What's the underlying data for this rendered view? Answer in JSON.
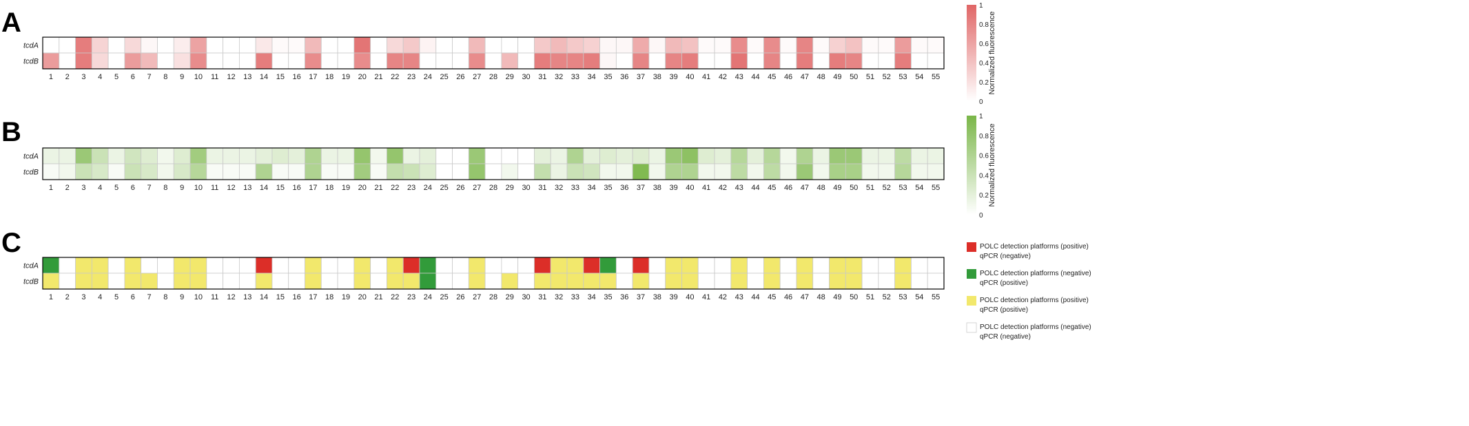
{
  "chart_data": [
    {
      "type": "heatmap",
      "panel_label": "A",
      "rows": [
        "tcdA",
        "tcdB"
      ],
      "columns": [
        "1",
        "2",
        "3",
        "4",
        "5",
        "6",
        "7",
        "8",
        "9",
        "10",
        "11",
        "12",
        "13",
        "14",
        "15",
        "16",
        "17",
        "18",
        "19",
        "20",
        "21",
        "22",
        "23",
        "24",
        "25",
        "26",
        "27",
        "28",
        "29",
        "30",
        "31",
        "32",
        "33",
        "34",
        "35",
        "36",
        "37",
        "38",
        "39",
        "40",
        "41",
        "42",
        "43",
        "44",
        "45",
        "46",
        "47",
        "48",
        "49",
        "50",
        "51",
        "52",
        "53",
        "54",
        "55"
      ],
      "values": [
        [
          0,
          0,
          0.85,
          0.28,
          0,
          0.25,
          0.05,
          0,
          0.12,
          0.6,
          0,
          0,
          0,
          0.15,
          0.03,
          0.03,
          0.45,
          0,
          0,
          0.9,
          0,
          0.25,
          0.35,
          0.08,
          0,
          0,
          0.45,
          0,
          0,
          0,
          0.35,
          0.45,
          0.35,
          0.3,
          0.05,
          0.05,
          0.55,
          0.05,
          0.45,
          0.4,
          0.03,
          0.03,
          0.75,
          0.03,
          0.75,
          0.03,
          0.8,
          0.03,
          0.3,
          0.4,
          0.03,
          0.03,
          0.65,
          0.03,
          0.03
        ],
        [
          0.65,
          0,
          0.85,
          0.25,
          0,
          0.65,
          0.45,
          0,
          0.2,
          0.75,
          0,
          0,
          0,
          0.85,
          0,
          0,
          0.75,
          0,
          0,
          0.75,
          0,
          0.8,
          0.8,
          0,
          0,
          0,
          0.75,
          0,
          0.45,
          0,
          0.85,
          0.8,
          0.8,
          0.85,
          0.05,
          0,
          0.8,
          0,
          0.8,
          0.85,
          0,
          0,
          0.9,
          0,
          0.8,
          0,
          0.85,
          0,
          0.85,
          0.8,
          0,
          0,
          0.85,
          0,
          0
        ]
      ],
      "colorbar": {
        "label": "Normalized fluorescence",
        "ticks": [
          "1",
          "0.8",
          "0.6",
          "0.4",
          "0.2",
          "0"
        ],
        "low_color": "#ffffff",
        "high_color": "#e06666"
      }
    },
    {
      "type": "heatmap",
      "panel_label": "B",
      "rows": [
        "tcdA",
        "tcdB"
      ],
      "columns": [
        "1",
        "2",
        "3",
        "4",
        "5",
        "6",
        "7",
        "8",
        "9",
        "10",
        "11",
        "12",
        "13",
        "14",
        "15",
        "16",
        "17",
        "18",
        "19",
        "20",
        "21",
        "22",
        "23",
        "24",
        "25",
        "26",
        "27",
        "28",
        "29",
        "30",
        "31",
        "32",
        "33",
        "34",
        "35",
        "36",
        "37",
        "38",
        "39",
        "40",
        "41",
        "42",
        "43",
        "44",
        "45",
        "46",
        "47",
        "48",
        "49",
        "50",
        "51",
        "52",
        "53",
        "54",
        "55"
      ],
      "values": [
        [
          0.15,
          0.15,
          0.75,
          0.4,
          0.15,
          0.35,
          0.25,
          0.1,
          0.25,
          0.7,
          0.15,
          0.15,
          0.15,
          0.2,
          0.25,
          0.2,
          0.6,
          0.15,
          0.15,
          0.8,
          0.1,
          0.8,
          0.15,
          0.2,
          0,
          0,
          0.75,
          0,
          0,
          0,
          0.2,
          0.15,
          0.6,
          0.2,
          0.25,
          0.2,
          0.25,
          0.15,
          0.75,
          0.85,
          0.25,
          0.2,
          0.55,
          0.2,
          0.55,
          0.1,
          0.6,
          0.15,
          0.75,
          0.75,
          0.15,
          0.15,
          0.5,
          0.15,
          0.15
        ],
        [
          0.05,
          0.1,
          0.4,
          0.3,
          0.05,
          0.4,
          0.3,
          0.1,
          0.3,
          0.55,
          0.05,
          0.05,
          0.05,
          0.6,
          0.05,
          0.05,
          0.6,
          0.05,
          0.05,
          0.7,
          0.05,
          0.45,
          0.4,
          0.25,
          0,
          0,
          0.8,
          0,
          0.1,
          0,
          0.45,
          0.15,
          0.4,
          0.35,
          0.1,
          0.1,
          0.95,
          0.1,
          0.6,
          0.6,
          0.1,
          0.1,
          0.5,
          0.1,
          0.5,
          0.1,
          0.75,
          0.1,
          0.65,
          0.65,
          0.1,
          0.1,
          0.55,
          0.1,
          0.1
        ]
      ],
      "colorbar": {
        "label": "Normalized fluorescence",
        "ticks": [
          "1",
          "0.8",
          "0.6",
          "0.4",
          "0.2",
          "0"
        ],
        "low_color": "#ffffff",
        "high_color": "#7ab648"
      }
    },
    {
      "type": "heatmap",
      "panel_label": "C",
      "rows": [
        "tcdA",
        "tcdB"
      ],
      "columns": [
        "1",
        "2",
        "3",
        "4",
        "5",
        "6",
        "7",
        "8",
        "9",
        "10",
        "11",
        "12",
        "13",
        "14",
        "15",
        "16",
        "17",
        "18",
        "19",
        "20",
        "21",
        "22",
        "23",
        "24",
        "25",
        "26",
        "27",
        "28",
        "29",
        "30",
        "31",
        "32",
        "33",
        "34",
        "35",
        "36",
        "37",
        "38",
        "39",
        "40",
        "41",
        "42",
        "43",
        "44",
        "45",
        "46",
        "47",
        "48",
        "49",
        "50",
        "51",
        "52",
        "53",
        "54",
        "55"
      ],
      "categories": [
        [
          "G",
          "W",
          "Y",
          "Y",
          "W",
          "Y",
          "W",
          "W",
          "Y",
          "Y",
          "W",
          "W",
          "W",
          "R",
          "W",
          "W",
          "Y",
          "W",
          "W",
          "Y",
          "W",
          "Y",
          "R",
          "G",
          "W",
          "W",
          "Y",
          "W",
          "W",
          "W",
          "R",
          "Y",
          "Y",
          "R",
          "G",
          "W",
          "R",
          "W",
          "Y",
          "Y",
          "W",
          "W",
          "Y",
          "W",
          "Y",
          "W",
          "Y",
          "W",
          "Y",
          "Y",
          "W",
          "W",
          "Y",
          "W",
          "W"
        ],
        [
          "Y",
          "W",
          "Y",
          "Y",
          "W",
          "Y",
          "Y",
          "W",
          "Y",
          "Y",
          "W",
          "W",
          "W",
          "Y",
          "W",
          "W",
          "Y",
          "W",
          "W",
          "Y",
          "W",
          "Y",
          "Y",
          "G",
          "W",
          "W",
          "Y",
          "W",
          "Y",
          "W",
          "Y",
          "Y",
          "Y",
          "Y",
          "Y",
          "W",
          "Y",
          "W",
          "Y",
          "Y",
          "W",
          "W",
          "Y",
          "W",
          "Y",
          "W",
          "Y",
          "W",
          "Y",
          "Y",
          "W",
          "W",
          "Y",
          "W",
          "W"
        ]
      ],
      "legend": [
        {
          "code": "R",
          "color": "#dc2e28",
          "line1": "POLC detection platforms (positive)",
          "line2": "qPCR (negative)"
        },
        {
          "code": "G",
          "color": "#329b3a",
          "line1": "POLC detection platforms (negative)",
          "line2": "qPCR (positive)"
        },
        {
          "code": "Y",
          "color": "#f2e86c",
          "line1": "POLC detection platforms (positive)",
          "line2": "qPCR (positive)"
        },
        {
          "code": "W",
          "color": "#ffffff",
          "line1": "POLC detection platforms (negative)",
          "line2": "qPCR (negative)"
        }
      ]
    }
  ]
}
